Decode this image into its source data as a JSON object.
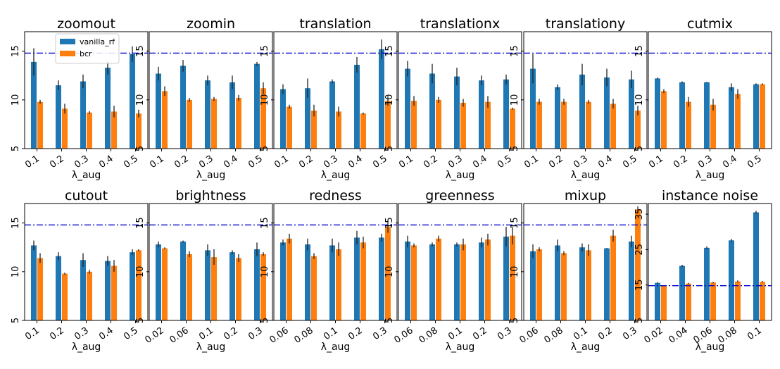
{
  "figure": {
    "xlabel_common": "λ_aug",
    "reference_line_color": "#0000cc"
  },
  "colors": {
    "vanilla_rf": "#1f77b4",
    "bcr": "#ff7f0e",
    "errorbar": "#222222"
  },
  "legend": {
    "placement": "upper-left of first panel",
    "entries": [
      "vanilla_rf",
      "bcr"
    ]
  },
  "chart_data": [
    {
      "type": "bar",
      "title": "zoomout",
      "xlabel": "λ_aug",
      "categories": [
        "0.1",
        "0.2",
        "0.3",
        "0.4",
        "0.5"
      ],
      "ylim": [
        5,
        17
      ],
      "yticks": [
        5,
        10,
        15
      ],
      "reference_line": 14.8,
      "series": [
        {
          "name": "vanilla_rf",
          "values": [
            13.9,
            11.5,
            11.9,
            13.3,
            14.7
          ],
          "errors": [
            1.4,
            0.5,
            0.7,
            0.7,
            0.8
          ]
        },
        {
          "name": "bcr",
          "values": [
            9.8,
            9.1,
            8.7,
            8.8,
            8.6
          ],
          "errors": [
            0.2,
            0.5,
            0.15,
            0.6,
            0.4
          ]
        }
      ]
    },
    {
      "type": "bar",
      "title": "zoomin",
      "xlabel": "λ_aug",
      "categories": [
        "0.1",
        "0.2",
        "0.3",
        "0.4",
        "0.5"
      ],
      "ylim": [
        5,
        17
      ],
      "yticks": [
        5,
        10,
        15
      ],
      "reference_line": 14.8,
      "series": [
        {
          "name": "vanilla_rf",
          "values": [
            12.7,
            13.5,
            12.0,
            11.8,
            13.7
          ],
          "errors": [
            0.7,
            0.6,
            0.5,
            0.7,
            0.2
          ]
        },
        {
          "name": "bcr",
          "values": [
            10.9,
            10.0,
            10.1,
            10.2,
            11.2
          ],
          "errors": [
            0.5,
            0.2,
            0.2,
            0.3,
            0.6
          ]
        }
      ]
    },
    {
      "type": "bar",
      "title": "translation",
      "xlabel": "λ_aug",
      "categories": [
        "0.1",
        "0.2",
        "0.3",
        "0.4",
        "0.5"
      ],
      "ylim": [
        5,
        17
      ],
      "yticks": [
        5,
        10,
        15
      ],
      "reference_line": 14.8,
      "series": [
        {
          "name": "vanilla_rf",
          "values": [
            11.1,
            11.2,
            11.9,
            13.6,
            15.2
          ],
          "errors": [
            0.5,
            1.0,
            0.2,
            0.8,
            1.0
          ]
        },
        {
          "name": "bcr",
          "values": [
            9.3,
            8.9,
            8.8,
            8.6,
            9.9
          ],
          "errors": [
            0.2,
            0.6,
            0.5,
            0.1,
            0.5
          ]
        }
      ]
    },
    {
      "type": "bar",
      "title": "translationx",
      "xlabel": "λ_aug",
      "categories": [
        "0.1",
        "0.2",
        "0.3",
        "0.4",
        "0.5"
      ],
      "ylim": [
        5,
        17
      ],
      "yticks": [
        5,
        10,
        15
      ],
      "reference_line": 14.8,
      "series": [
        {
          "name": "vanilla_rf",
          "values": [
            13.2,
            12.7,
            12.4,
            12.0,
            12.1
          ],
          "errors": [
            0.8,
            1.0,
            0.9,
            0.5,
            0.5
          ]
        },
        {
          "name": "bcr",
          "values": [
            9.9,
            10.0,
            9.7,
            9.8,
            9.1
          ],
          "errors": [
            0.5,
            0.3,
            0.4,
            0.6,
            0.1
          ]
        }
      ]
    },
    {
      "type": "bar",
      "title": "translationy",
      "xlabel": "λ_aug",
      "categories": [
        "0.1",
        "0.2",
        "0.3",
        "0.4",
        "0.5"
      ],
      "ylim": [
        5,
        17
      ],
      "yticks": [
        5,
        10,
        15
      ],
      "reference_line": 14.8,
      "series": [
        {
          "name": "vanilla_rf",
          "values": [
            13.2,
            11.3,
            12.6,
            12.3,
            12.1
          ],
          "errors": [
            1.5,
            0.3,
            1.1,
            0.9,
            0.9
          ]
        },
        {
          "name": "bcr",
          "values": [
            9.8,
            9.8,
            9.8,
            9.6,
            8.9
          ],
          "errors": [
            0.3,
            0.3,
            0.2,
            0.5,
            0.5
          ]
        }
      ]
    },
    {
      "type": "bar",
      "title": "cutmix",
      "xlabel": "λ_aug",
      "categories": [
        "0.1",
        "0.2",
        "0.3",
        "0.4",
        "0.5"
      ],
      "ylim": [
        5,
        17
      ],
      "yticks": [
        5,
        10,
        15
      ],
      "reference_line": 14.8,
      "series": [
        {
          "name": "vanilla_rf",
          "values": [
            12.2,
            11.8,
            11.8,
            11.3,
            11.6
          ],
          "errors": [
            0.1,
            0.1,
            0.05,
            0.4,
            0.1
          ]
        },
        {
          "name": "bcr",
          "values": [
            10.9,
            9.8,
            9.5,
            10.6,
            11.6
          ],
          "errors": [
            0.2,
            0.5,
            0.6,
            0.5,
            0.1
          ]
        }
      ]
    },
    {
      "type": "bar",
      "title": "cutout",
      "xlabel": "λ_aug",
      "categories": [
        "0.1",
        "0.2",
        "0.3",
        "0.4",
        "0.5"
      ],
      "ylim": [
        5,
        17
      ],
      "yticks": [
        5,
        10,
        15
      ],
      "reference_line": 14.8,
      "series": [
        {
          "name": "vanilla_rf",
          "values": [
            12.7,
            11.6,
            11.2,
            11.1,
            12.0
          ],
          "errors": [
            0.5,
            0.4,
            0.7,
            0.5,
            0.3
          ]
        },
        {
          "name": "bcr",
          "values": [
            11.4,
            9.8,
            10.0,
            10.6,
            12.2
          ],
          "errors": [
            0.5,
            0.1,
            0.2,
            0.6,
            0.1
          ]
        }
      ]
    },
    {
      "type": "bar",
      "title": "brightness",
      "xlabel": "λ_aug",
      "categories": [
        "0.02",
        "0.06",
        "0.1",
        "0.2",
        "0.3"
      ],
      "ylim": [
        5,
        17
      ],
      "yticks": [
        5,
        10,
        15
      ],
      "reference_line": 14.8,
      "series": [
        {
          "name": "vanilla_rf",
          "values": [
            12.8,
            13.1,
            12.2,
            12.0,
            12.3
          ],
          "errors": [
            0.3,
            0.1,
            0.6,
            0.2,
            0.7
          ]
        },
        {
          "name": "bcr",
          "values": [
            12.4,
            11.8,
            11.5,
            11.4,
            11.8
          ],
          "errors": [
            0.1,
            0.3,
            0.8,
            0.4,
            0.2
          ]
        }
      ]
    },
    {
      "type": "bar",
      "title": "redness",
      "xlabel": "λ_aug",
      "categories": [
        "0.06",
        "0.08",
        "0.1",
        "0.2",
        "0.3"
      ],
      "ylim": [
        5,
        17
      ],
      "yticks": [
        5,
        10,
        15
      ],
      "reference_line": 14.8,
      "series": [
        {
          "name": "vanilla_rf",
          "values": [
            13.0,
            12.8,
            12.7,
            13.5,
            13.5
          ],
          "errors": [
            0.3,
            0.6,
            0.7,
            0.7,
            0.4
          ]
        },
        {
          "name": "bcr",
          "values": [
            13.4,
            11.6,
            12.3,
            13.0,
            14.6
          ],
          "errors": [
            0.5,
            0.3,
            0.7,
            0.6,
            0.6
          ]
        }
      ]
    },
    {
      "type": "bar",
      "title": "greenness",
      "xlabel": "λ_aug",
      "categories": [
        "0.06",
        "0.08",
        "0.1",
        "0.2",
        "0.3"
      ],
      "ylim": [
        5,
        17
      ],
      "yticks": [
        5,
        10,
        15
      ],
      "reference_line": 14.8,
      "series": [
        {
          "name": "vanilla_rf",
          "values": [
            13.1,
            12.8,
            12.8,
            13.0,
            13.6
          ],
          "errors": [
            0.6,
            0.2,
            0.2,
            0.5,
            1.0
          ]
        },
        {
          "name": "bcr",
          "values": [
            12.7,
            13.4,
            12.8,
            13.3,
            13.7
          ],
          "errors": [
            0.2,
            0.3,
            0.6,
            0.6,
            0.9
          ]
        }
      ]
    },
    {
      "type": "bar",
      "title": "mixup",
      "xlabel": "λ_aug",
      "categories": [
        "0.06",
        "0.08",
        "0.1",
        "0.2",
        "0.3"
      ],
      "ylim": [
        5,
        17
      ],
      "yticks": [
        5,
        10,
        15
      ],
      "reference_line": 14.8,
      "series": [
        {
          "name": "vanilla_rf",
          "values": [
            12.1,
            12.7,
            12.5,
            12.4,
            13.1
          ],
          "errors": [
            0.7,
            0.6,
            0.4,
            0.05,
            0.6
          ]
        },
        {
          "name": "bcr",
          "values": [
            12.3,
            11.9,
            12.2,
            13.7,
            16.4
          ],
          "errors": [
            0.2,
            0.2,
            0.6,
            0.6,
            0.3
          ]
        }
      ]
    },
    {
      "type": "bar",
      "title": "instance noise",
      "xlabel": "λ_aug",
      "categories": [
        "0.02",
        "0.04",
        "0.06",
        "0.08",
        "0.1"
      ],
      "ylim": [
        5,
        38
      ],
      "yticks": [
        5,
        15,
        25,
        35
      ],
      "reference_line": 14.8,
      "series": [
        {
          "name": "vanilla_rf",
          "values": [
            15.6,
            20.4,
            25.5,
            27.6,
            35.5
          ],
          "errors": [
            0.2,
            0.3,
            0.4,
            0.4,
            0.4
          ]
        },
        {
          "name": "bcr",
          "values": [
            14.8,
            15.4,
            15.7,
            16.0,
            15.9
          ],
          "errors": [
            0.1,
            0.2,
            0.2,
            0.3,
            0.2
          ]
        }
      ]
    }
  ]
}
